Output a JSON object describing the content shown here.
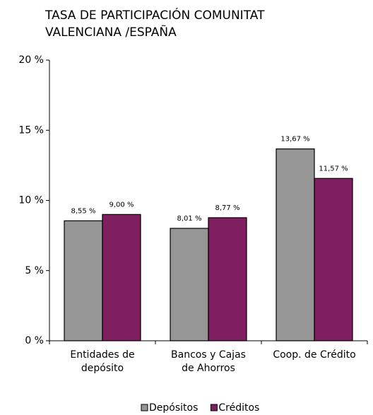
{
  "chart_data": {
    "type": "bar",
    "title": [
      "TASA DE PARTICIPACIÓN  COMUNITAT",
      "VALENCIANA /ESPAÑA"
    ],
    "categories": [
      [
        "Entidades de",
        "depósito"
      ],
      [
        "Bancos y Cajas",
        "de Ahorros"
      ],
      [
        "Coop. de Crédito"
      ]
    ],
    "series": [
      {
        "name": "Depósitos",
        "color": "#969696",
        "values": [
          8.55,
          8.01,
          13.67
        ],
        "value_labels": [
          "8,55 %",
          "8,01 %",
          "13,67 %"
        ]
      },
      {
        "name": "Créditos",
        "color": "#7f1f5f",
        "values": [
          9.0,
          8.77,
          11.57
        ],
        "value_labels": [
          "9,00 %",
          "8,77 %",
          "11,57 %"
        ]
      }
    ],
    "ylim": [
      0,
      20
    ],
    "yticks": [
      {
        "value": 0,
        "label": "0 %"
      },
      {
        "value": 5,
        "label": "5 %"
      },
      {
        "value": 10,
        "label": "10 %"
      },
      {
        "value": 15,
        "label": "15 %"
      },
      {
        "value": 20,
        "label": "20 %"
      }
    ],
    "legend": "bottom"
  }
}
